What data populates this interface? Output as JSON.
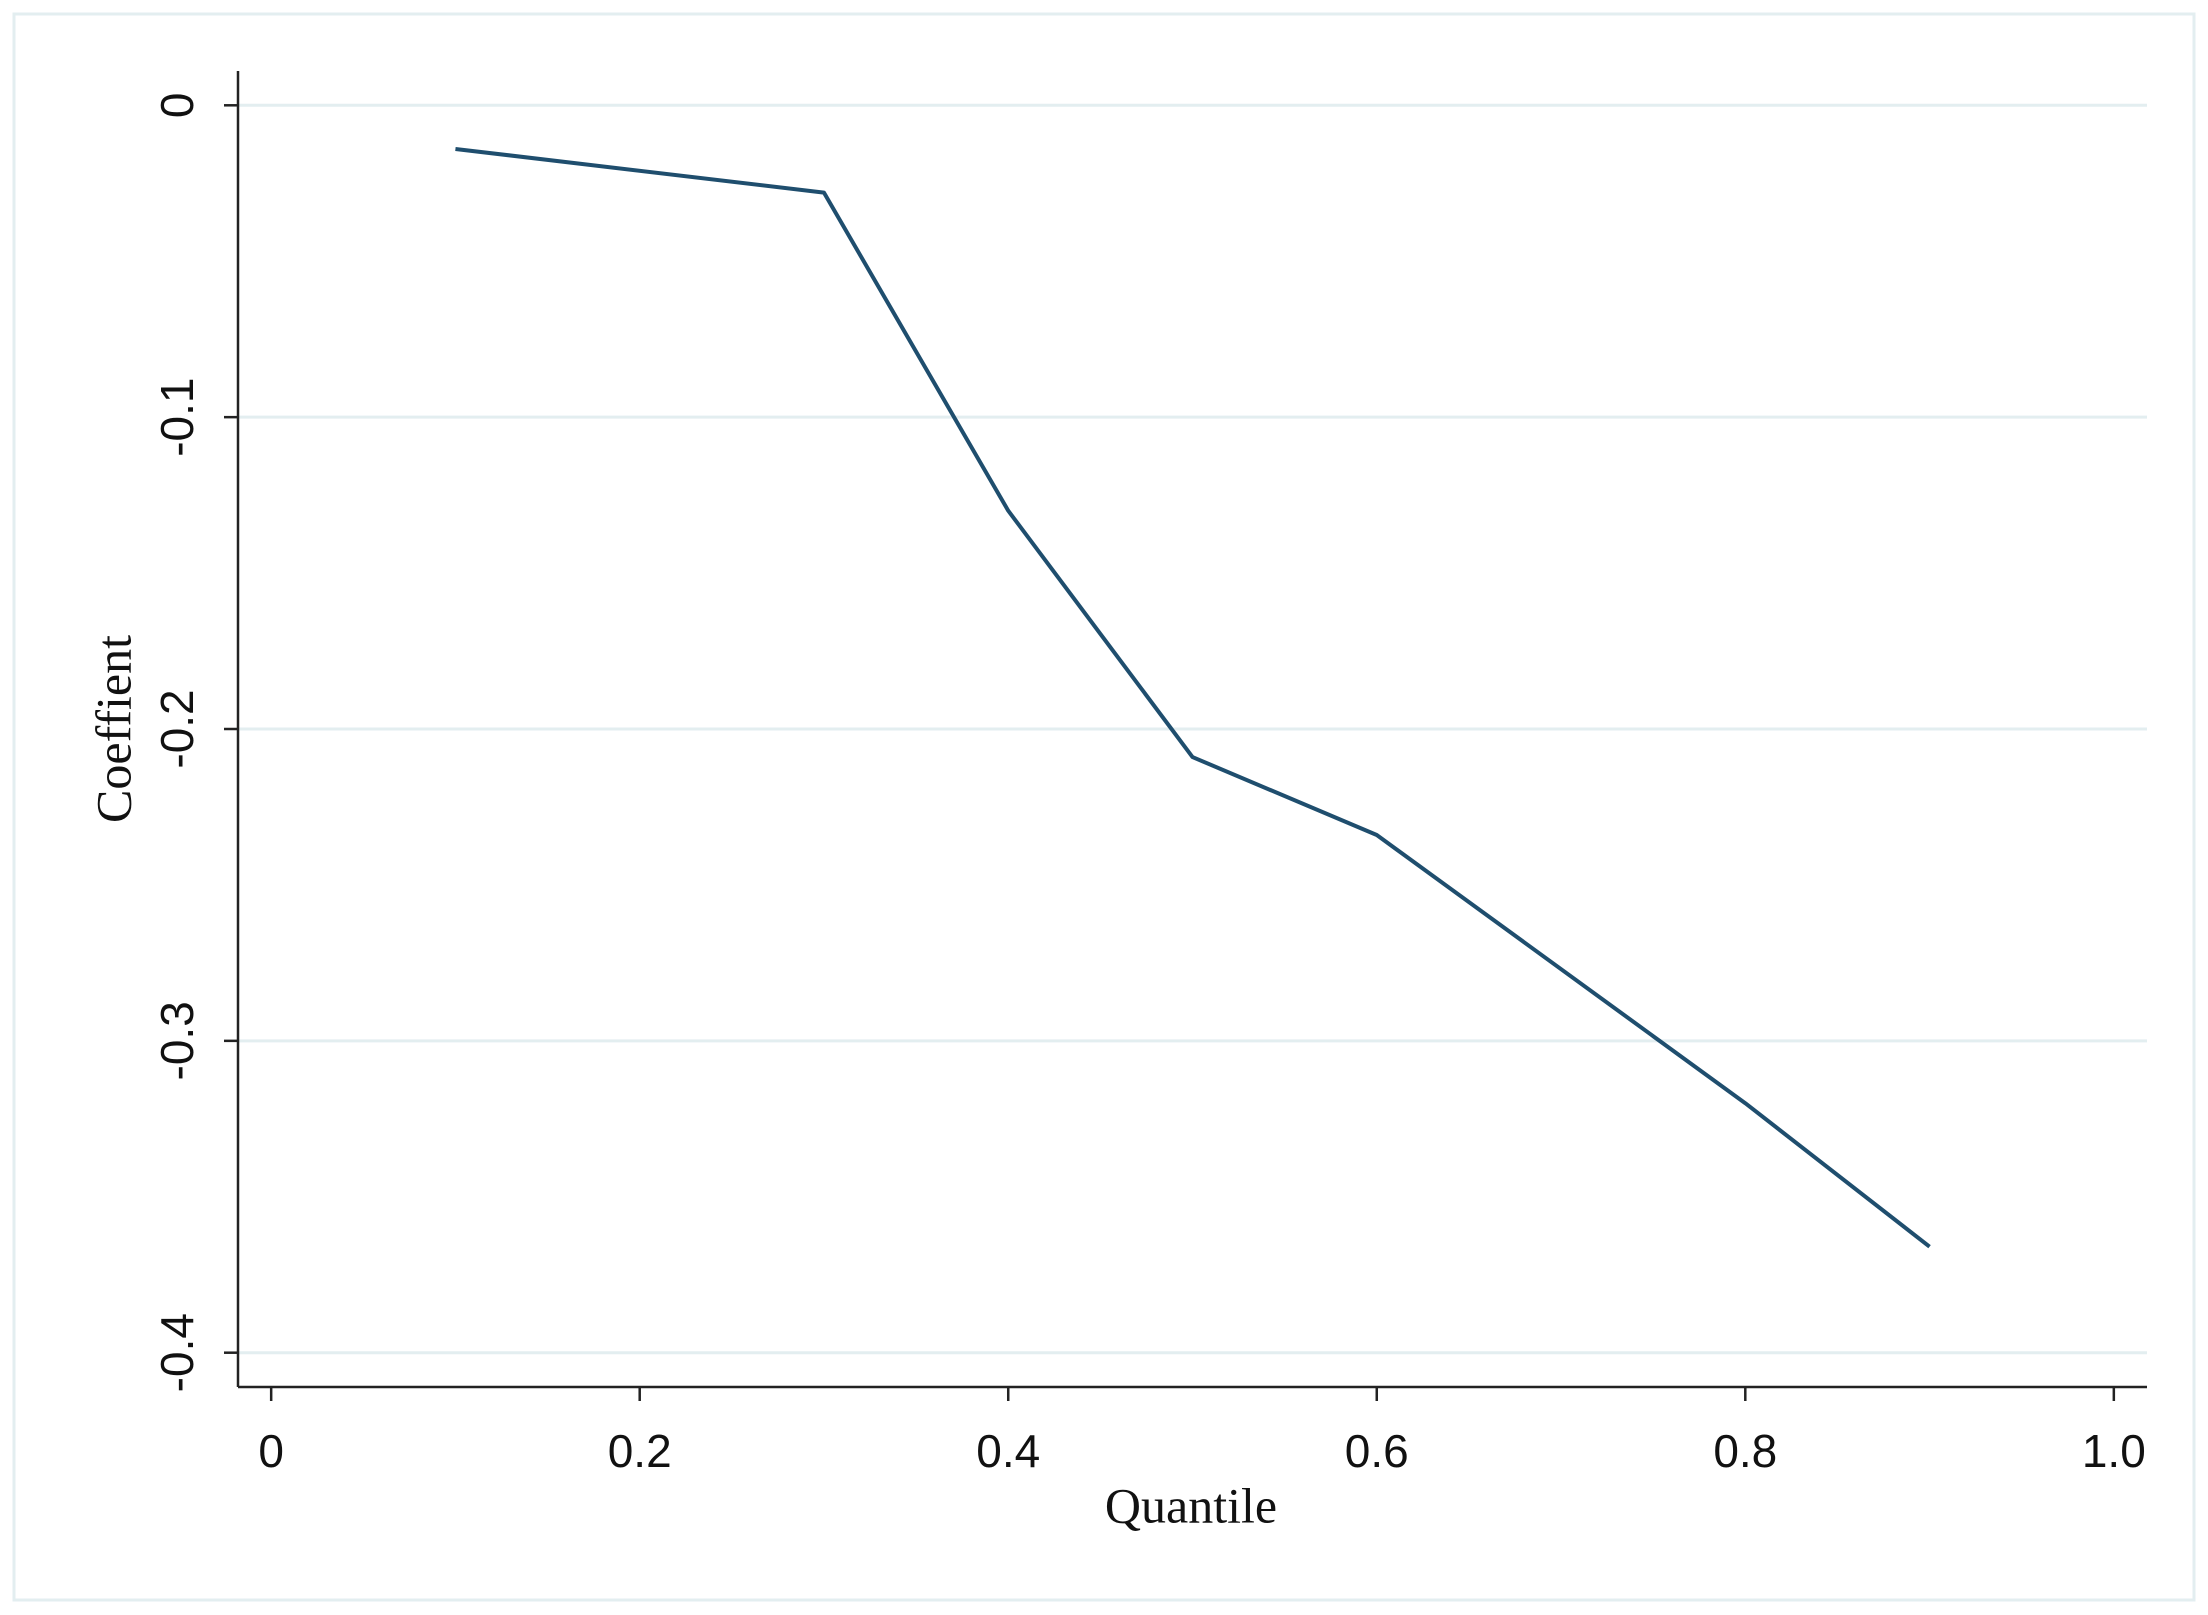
{
  "chart_data": {
    "type": "line",
    "x_label": "Quantile",
    "y_label": "Coeffient",
    "x": [
      0.1,
      0.3,
      0.4,
      0.5,
      0.6,
      0.8,
      0.9
    ],
    "series": [
      {
        "name": "Coefficient",
        "color": "#1f4e6e",
        "values": [
          -0.014,
          -0.028,
          -0.13,
          -0.209,
          -0.234,
          -0.32,
          -0.366
        ]
      }
    ],
    "xlim": [
      -0.018,
      1.018
    ],
    "ylim": [
      -0.411,
      0.011
    ],
    "xticks": [
      0,
      0.2,
      0.4,
      0.6,
      0.8,
      {
        "value": 1,
        "label": "1.0"
      }
    ],
    "yticks": [
      0,
      -0.1,
      -0.2,
      -0.3,
      -0.4
    ],
    "grid": true,
    "legend": false
  }
}
